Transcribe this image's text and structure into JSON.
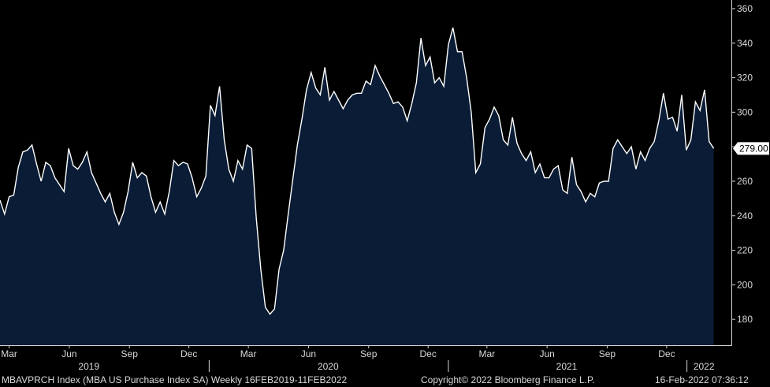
{
  "chart_data": {
    "type": "area",
    "ticker": "MBAVPRCH Index",
    "series": [
      {
        "name": "MBA US Purchase Index SA",
        "frequency": "Weekly",
        "x_start": "2019-02-15",
        "x_end": "2022-02-11",
        "values": [
          249,
          241,
          251,
          252,
          268,
          277,
          278,
          281,
          270,
          260,
          271,
          269,
          262,
          258,
          254,
          279,
          269,
          267,
          271,
          277,
          265,
          259,
          253,
          248,
          253,
          242,
          235,
          242,
          254,
          271,
          262,
          265,
          263,
          251,
          242,
          248,
          241,
          254,
          272,
          269,
          271,
          270,
          262,
          251,
          256,
          263,
          304,
          298,
          315,
          284,
          267,
          260,
          272,
          267,
          281,
          279,
          239,
          209,
          187,
          183,
          186,
          209,
          220,
          241,
          261,
          281,
          296,
          313,
          323,
          314,
          310,
          326,
          307,
          312,
          307,
          302,
          307,
          310,
          311,
          311,
          318,
          316,
          327,
          321,
          316,
          311,
          305,
          306,
          303,
          295,
          305,
          317,
          343,
          327,
          332,
          317,
          320,
          315,
          339,
          349,
          335,
          335,
          320,
          300,
          265,
          270,
          291,
          296,
          303,
          298,
          284,
          281,
          297,
          282,
          276,
          272,
          277,
          265,
          270,
          262,
          262,
          267,
          269,
          255,
          253,
          274,
          258,
          254,
          248,
          253,
          251,
          259,
          260,
          260,
          279,
          284,
          280,
          276,
          280,
          267,
          277,
          272,
          279,
          283,
          295,
          311,
          296,
          297,
          289,
          310,
          278,
          284,
          306,
          301,
          313,
          283,
          279
        ]
      }
    ],
    "last_value_label": "279.00",
    "ylim": [
      165,
      365
    ],
    "y_ticks": [
      180,
      200,
      220,
      240,
      260,
      280,
      300,
      320,
      340,
      360
    ],
    "x_ticks": [
      {
        "date": "2019-03-01",
        "label": "Mar"
      },
      {
        "date": "2019-06-01",
        "label": "Jun"
      },
      {
        "date": "2019-09-01",
        "label": "Sep"
      },
      {
        "date": "2019-12-01",
        "label": "Dec"
      },
      {
        "date": "2020-03-01",
        "label": "Mar"
      },
      {
        "date": "2020-06-01",
        "label": "Jun"
      },
      {
        "date": "2020-09-01",
        "label": "Sep"
      },
      {
        "date": "2020-12-01",
        "label": "Dec"
      },
      {
        "date": "2021-03-01",
        "label": "Mar"
      },
      {
        "date": "2021-06-01",
        "label": "Jun"
      },
      {
        "date": "2021-09-01",
        "label": "Sep"
      },
      {
        "date": "2021-12-01",
        "label": "Dec"
      }
    ],
    "year_labels": [
      {
        "date": "2019-07-01",
        "label": "2019"
      },
      {
        "date": "2020-07-01",
        "label": "2020"
      },
      {
        "date": "2021-07-01",
        "label": "2021"
      },
      {
        "date": "2022-01-27",
        "label": "2022"
      }
    ],
    "year_boundaries": [
      "2020-01-01",
      "2021-01-01",
      "2022-01-01"
    ],
    "grid": false,
    "colors": {
      "background": "#000000",
      "area_fill": "#0a1c36",
      "line": "#ffffff",
      "axis": "#d8d8d8",
      "last_value_box": "#ffffff"
    }
  },
  "footer": {
    "left": "MBAVPRCH Index (MBA US Purchase Index SA)  Weekly 16FEB2019-11FEB2022",
    "center": "Copyright© 2022 Bloomberg Finance L.P.",
    "right": "16-Feb-2022 07:36:12"
  }
}
